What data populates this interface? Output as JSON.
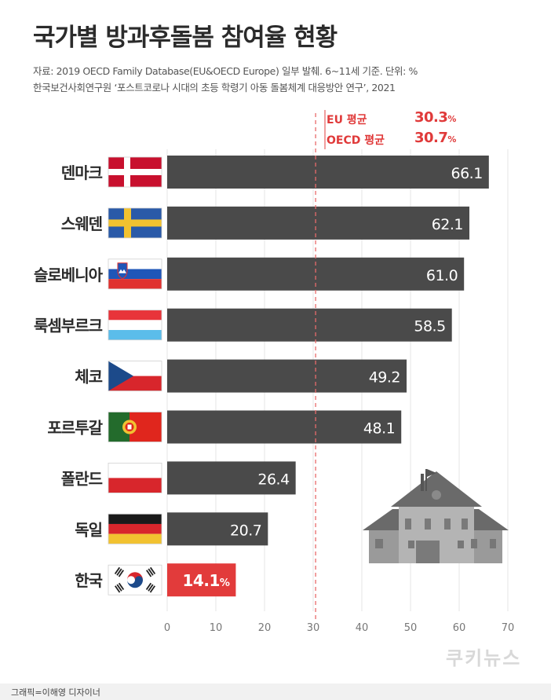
{
  "header": {
    "title": "국가별 방과후돌봄 참여율 현황",
    "source_line1": "자료: 2019 OECD Family Database(EU&OECD Europe) 일부 발췌.  6~11세 기준. 단위: %",
    "source_line2": "한국보건사회연구원 ‘포스트코로나 시대의 초등 학령기 아동 돌봄체계 대응방안 연구’, 2021"
  },
  "averages": {
    "eu_label": "EU 평균",
    "eu_value": "30.3",
    "oecd_label": "OECD 평균",
    "oecd_value": "30.7",
    "unit": "%"
  },
  "chart_data": {
    "type": "bar",
    "orientation": "horizontal",
    "categories": [
      "덴마크",
      "스웨덴",
      "슬로베니아",
      "룩셈부르크",
      "체코",
      "포르투갈",
      "폴란드",
      "독일",
      "한국"
    ],
    "values": [
      66.1,
      62.1,
      61.0,
      58.5,
      49.2,
      48.1,
      26.4,
      20.7,
      14.1
    ],
    "value_labels": [
      "66.1",
      "62.1",
      "61.0",
      "58.5",
      "49.2",
      "48.1",
      "26.4",
      "20.7",
      "14.1"
    ],
    "highlight_index": 8,
    "highlight_unit": "%",
    "xlim": [
      0,
      70
    ],
    "xticks": [
      "0",
      "10",
      "20",
      "30",
      "40",
      "50",
      "60",
      "70"
    ],
    "reference_line": 30.5,
    "grid": true,
    "colors": {
      "bar": "#4a4a4a",
      "highlight": "#e23b3b",
      "reference": "#e86a6a"
    }
  },
  "flags": [
    "denmark-flag",
    "sweden-flag",
    "slovenia-flag",
    "luxembourg-flag",
    "czech-flag",
    "portugal-flag",
    "poland-flag",
    "germany-flag",
    "korea-flag"
  ],
  "footer": {
    "credit": "그래픽=이해영 디자이너",
    "logo": "쿠키뉴스"
  }
}
